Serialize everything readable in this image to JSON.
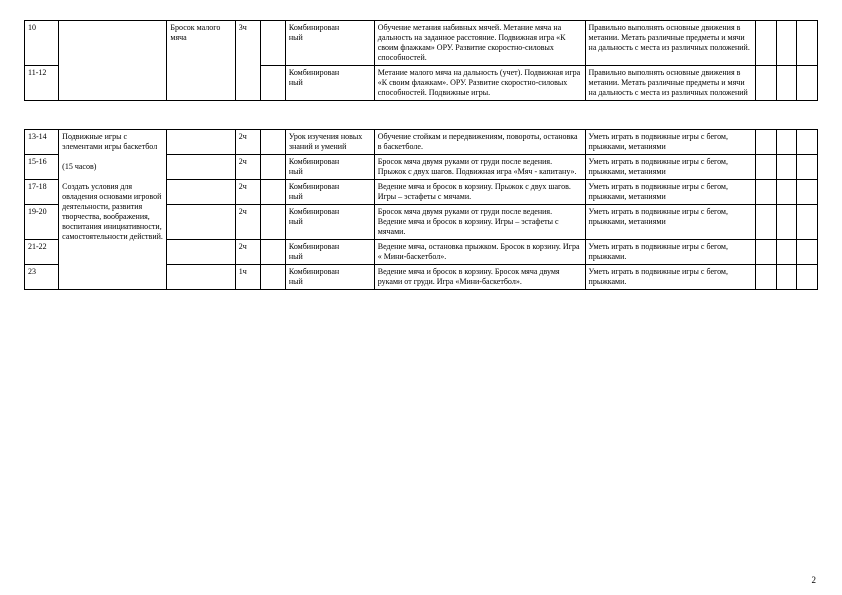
{
  "page_number": "2",
  "table1": {
    "rows": [
      {
        "num": "10",
        "section": "",
        "topic": "Бросок малого мяча",
        "hours": "3ч",
        "blank": "",
        "type": "Комбинирован\nный",
        "content": "Обучение метания набивных мячей. Метание мяча на дальность на заданное расстояние. Подвижная игра «К своим флажкам» ОРУ. Развитие скоростно-силовых способностей.",
        "req": "Правильно выполнять основные движения в метании. Метать различные предметы и мячи на дальность с места из различных положений.",
        "e1": "",
        "e2": "",
        "e3": ""
      },
      {
        "num": "11-12",
        "section": "",
        "topic": "",
        "hours": "",
        "blank": "",
        "type": "Комбинирован\nный",
        "content": "Метание малого мяча на дальность (учет). Подвижная игра «К своим флажкам». ОРУ. Развитие скоростно-силовых способностей. Подвижные игры.",
        "req": "Правильно выполнять основные движения в метании. Метать различные предметы и мячи на дальность с места из различных положений",
        "e1": "",
        "e2": "",
        "e3": ""
      }
    ]
  },
  "table2": {
    "section_merged": "Подвижные игры с элементами игры баскетбол\n\n(15 часов)\n\nСоздать условия для овладения основами игровой деятельности, развития творчества, воображения, воспитания инициативности, самостоятельности действий.",
    "rows": [
      {
        "num": "13-14",
        "topic": "",
        "hours": "2ч",
        "blank": "",
        "type": "Урок изучения новых знаний и умений",
        "content": "Обучение стойкам и передвижениям, повороты, остановка в баскетболе.",
        "req": "Уметь играть в подвижные игры с бегом, прыжками, метаниями",
        "e1": "",
        "e2": "",
        "e3": ""
      },
      {
        "num": "15-16",
        "topic": "",
        "hours": "2ч",
        "blank": "",
        "type": "Комбинирован\nный",
        "content": "Бросок мяча двумя руками от груди после ведения. Прыжок с двух шагов. Подвижная игра «Мяч - капитану».",
        "req": "Уметь играть в подвижные игры с бегом, прыжками, метаниями",
        "e1": "",
        "e2": "",
        "e3": ""
      },
      {
        "num": "17-18",
        "topic": "",
        "hours": "2ч",
        "blank": "",
        "type": "Комбинирован\nный",
        "content": "Ведение мяча  и бросок в корзину. Прыжок с двух шагов. Игры – эстафеты с мячами.",
        "req": "Уметь играть в подвижные игры с бегом, прыжками, метаниями",
        "e1": "",
        "e2": "",
        "e3": ""
      },
      {
        "num": "19-20",
        "topic": "",
        "hours": "2ч",
        "blank": "",
        "type": "Комбинирован\nный",
        "content": "Бросок мяча двумя руками от груди после ведения. Ведение мяча  и бросок в корзину. Игры – эстафеты с мячами.",
        "req": "Уметь играть в подвижные игры с бегом, прыжками, метаниями",
        "e1": "",
        "e2": "",
        "e3": ""
      },
      {
        "num": "21-22",
        "topic": "",
        "hours": "2ч",
        "blank": "",
        "type": "Комбинирован\nный",
        "content": "Ведение мяча, остановка  прыжком. Бросок в корзину. Игра « Мини-баскетбол».",
        "req": "Уметь играть в подвижные игры с бегом, прыжками.",
        "e1": "",
        "e2": "",
        "e3": ""
      },
      {
        "num": "23",
        "topic": "",
        "hours": "1ч",
        "blank": "",
        "type": "Комбинирован\nный",
        "content": "Ведение мяча  и бросок в корзину. Бросок мяча двумя руками от груди. Игра «Мини-баскетбол».",
        "req": "Уметь играть в подвижные игры с бегом, прыжками.",
        "e1": "",
        "e2": "",
        "e3": ""
      }
    ]
  }
}
